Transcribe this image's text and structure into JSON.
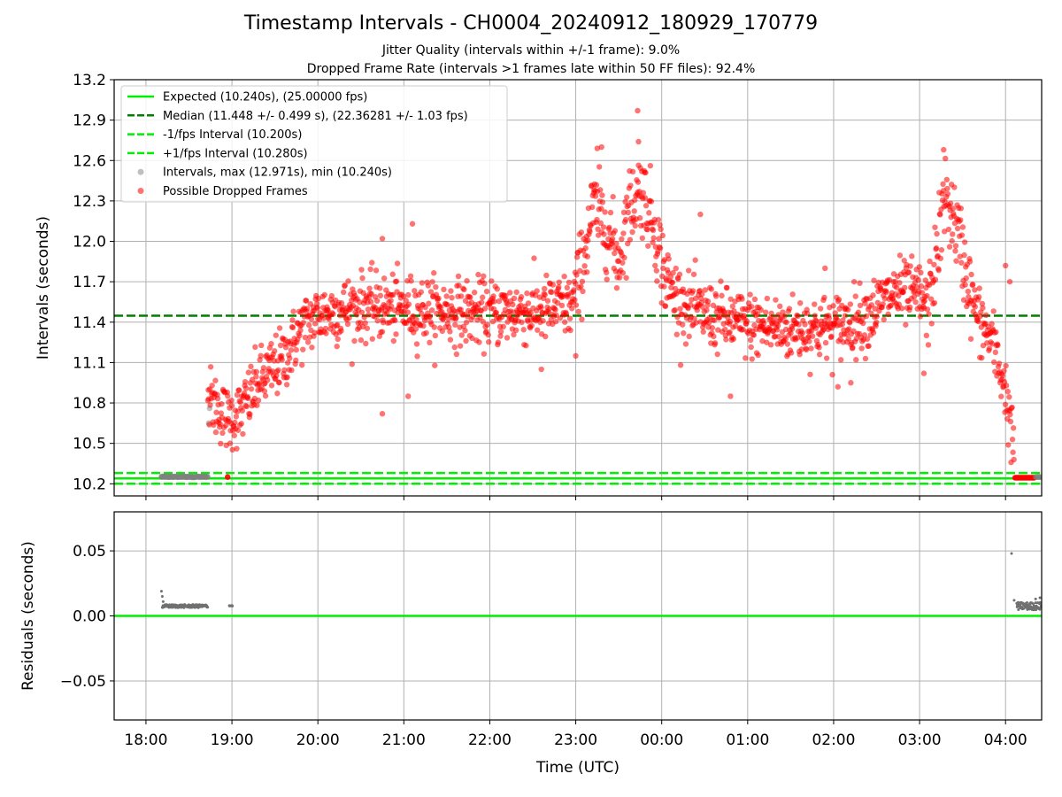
{
  "figure": {
    "title": "Timestamp Intervals - CH0004_20240912_180929_170779",
    "subtitle_1": "Jitter Quality (intervals within +/-1 frame): 9.0%",
    "subtitle_2": "Dropped Frame Rate (intervals >1 frames late within 50 FF files): 92.4%"
  },
  "chart_data": [
    {
      "type": "scatter",
      "panel": "top",
      "xlabel": "",
      "ylabel": "Intervals (seconds)",
      "x_unit": "hours UTC (18.0 = 18:00, 24.0 = 00:00 next day)",
      "xlim": [
        17.63,
        28.42
      ],
      "ylim": [
        10.11,
        13.2
      ],
      "x_ticks": [
        18,
        19,
        20,
        21,
        22,
        23,
        24,
        25,
        26,
        27,
        28
      ],
      "yticks": [
        10.2,
        10.5,
        10.8,
        11.1,
        11.4,
        11.7,
        12.0,
        12.3,
        12.6,
        12.9,
        13.2
      ],
      "ytick_labels": [
        "10.2",
        "10.5",
        "10.8",
        "11.1",
        "11.4",
        "11.7",
        "12.0",
        "12.3",
        "12.6",
        "12.9",
        "13.2"
      ],
      "grid": true,
      "legend_position": "top-left",
      "colors": {
        "expected": "#00ee00",
        "median": "#008000",
        "interval_lines": "#00ee00",
        "intervals": "#808080",
        "dropped": "#ff0000"
      },
      "lines": [
        {
          "name": "Expected (10.240s), (25.00000 fps)",
          "y": 10.24,
          "style": "solid",
          "color": "#00ee00"
        },
        {
          "name": "Median (11.448 +/- 0.499 s), (22.36281 +/- 1.03 fps)",
          "y": 11.448,
          "style": "dashed",
          "color": "#008000"
        },
        {
          "name": "-1/fps Interval (10.200s)",
          "y": 10.2,
          "style": "dashed",
          "color": "#00ee00"
        },
        {
          "name": "+1/fps Interval (10.280s)",
          "y": 10.28,
          "style": "dashed",
          "color": "#00ee00"
        }
      ],
      "series": [
        {
          "name": "Intervals, max (12.971s), min (10.240s)",
          "marker": "circle",
          "color": "#808080",
          "alpha": 0.5,
          "points": [
            [
              18.18,
              10.25
            ],
            [
              18.25,
              10.25
            ],
            [
              18.32,
              10.25
            ],
            [
              18.4,
              10.25
            ],
            [
              18.48,
              10.25
            ],
            [
              18.56,
              10.25
            ],
            [
              18.64,
              10.25
            ],
            [
              18.72,
              10.25
            ],
            [
              18.73,
              10.65
            ],
            [
              18.74,
              10.76
            ]
          ]
        },
        {
          "name": "Possible Dropped Frames",
          "marker": "circle",
          "color": "#ff0000",
          "alpha": 0.55,
          "profile": [
            [
              18.72,
              10.85
            ],
            [
              18.85,
              10.75
            ],
            [
              18.95,
              10.68
            ],
            [
              19.1,
              10.72
            ],
            [
              19.3,
              10.95
            ],
            [
              19.6,
              11.12
            ],
            [
              19.8,
              11.35
            ],
            [
              20.0,
              11.45
            ],
            [
              20.5,
              11.52
            ],
            [
              21.0,
              11.5
            ],
            [
              21.5,
              11.48
            ],
            [
              22.0,
              11.47
            ],
            [
              22.5,
              11.48
            ],
            [
              22.95,
              11.52
            ],
            [
              23.05,
              11.75
            ],
            [
              23.2,
              12.25
            ],
            [
              23.35,
              12.12
            ],
            [
              23.5,
              11.85
            ],
            [
              23.6,
              12.2
            ],
            [
              23.75,
              12.4
            ],
            [
              23.9,
              12.15
            ],
            [
              24.05,
              11.7
            ],
            [
              24.3,
              11.5
            ],
            [
              24.7,
              11.42
            ],
            [
              25.0,
              11.38
            ],
            [
              25.5,
              11.35
            ],
            [
              26.0,
              11.36
            ],
            [
              26.4,
              11.45
            ],
            [
              26.7,
              11.62
            ],
            [
              27.0,
              11.6
            ],
            [
              27.1,
              11.5
            ],
            [
              27.2,
              11.9
            ],
            [
              27.3,
              12.35
            ],
            [
              27.45,
              12.05
            ],
            [
              27.6,
              11.6
            ],
            [
              27.7,
              11.4
            ],
            [
              27.85,
              11.25
            ],
            [
              28.0,
              10.9
            ],
            [
              28.1,
              10.45
            ]
          ],
          "tail": [
            [
              28.12,
              10.25
            ],
            [
              28.2,
              10.25
            ],
            [
              28.27,
              10.25
            ],
            [
              28.34,
              10.25
            ]
          ],
          "extras": [
            [
              23.72,
              12.97
            ],
            [
              23.25,
              12.69
            ],
            [
              27.28,
              12.68
            ],
            [
              23.73,
              12.74
            ],
            [
              23.3,
              12.7
            ],
            [
              20.75,
              12.02
            ],
            [
              21.1,
              12.13
            ],
            [
              24.45,
              12.2
            ],
            [
              20.75,
              10.72
            ],
            [
              21.05,
              10.85
            ],
            [
              24.8,
              10.85
            ],
            [
              18.95,
              10.25
            ],
            [
              26.05,
              10.92
            ],
            [
              26.2,
              10.95
            ],
            [
              27.05,
              11.02
            ],
            [
              23.0,
              11.15
            ],
            [
              22.6,
              11.05
            ],
            [
              25.9,
              11.8
            ],
            [
              28.0,
              11.82
            ],
            [
              28.05,
              11.7
            ]
          ]
        }
      ]
    },
    {
      "type": "scatter",
      "panel": "bottom",
      "xlabel": "Time (UTC)",
      "ylabel": "Residuals (seconds)",
      "xlim": [
        17.63,
        28.42
      ],
      "ylim": [
        -0.08,
        0.08
      ],
      "yticks": [
        -0.05,
        0.0,
        0.05
      ],
      "ytick_labels": [
        "−0.05",
        "0.00",
        "0.05"
      ],
      "x_ticks": [
        18,
        19,
        20,
        21,
        22,
        23,
        24,
        25,
        26,
        27,
        28
      ],
      "xtick_labels": [
        "18:00",
        "19:00",
        "20:00",
        "21:00",
        "22:00",
        "23:00",
        "00:00",
        "01:00",
        "02:00",
        "03:00",
        "04:00"
      ],
      "grid": true,
      "colors": {
        "residuals": "#707070",
        "zero_line": "#00ee00"
      },
      "zero_line": 0.0,
      "series": [
        {
          "name": "Residuals",
          "color": "#707070",
          "runs": [
            [
              18.19,
              18.72,
              0.0075,
              0.0025
            ],
            [
              18.97,
              19.01,
              0.0078,
              0.0005
            ],
            [
              28.13,
              28.42,
              0.0075,
              0.006
            ]
          ],
          "points": [
            [
              18.18,
              0.019
            ],
            [
              18.19,
              0.015
            ],
            [
              18.2,
              0.011
            ],
            [
              28.07,
              0.048
            ],
            [
              28.1,
              0.012
            ],
            [
              28.35,
              0.013
            ],
            [
              28.4,
              0.014
            ]
          ]
        }
      ]
    }
  ]
}
